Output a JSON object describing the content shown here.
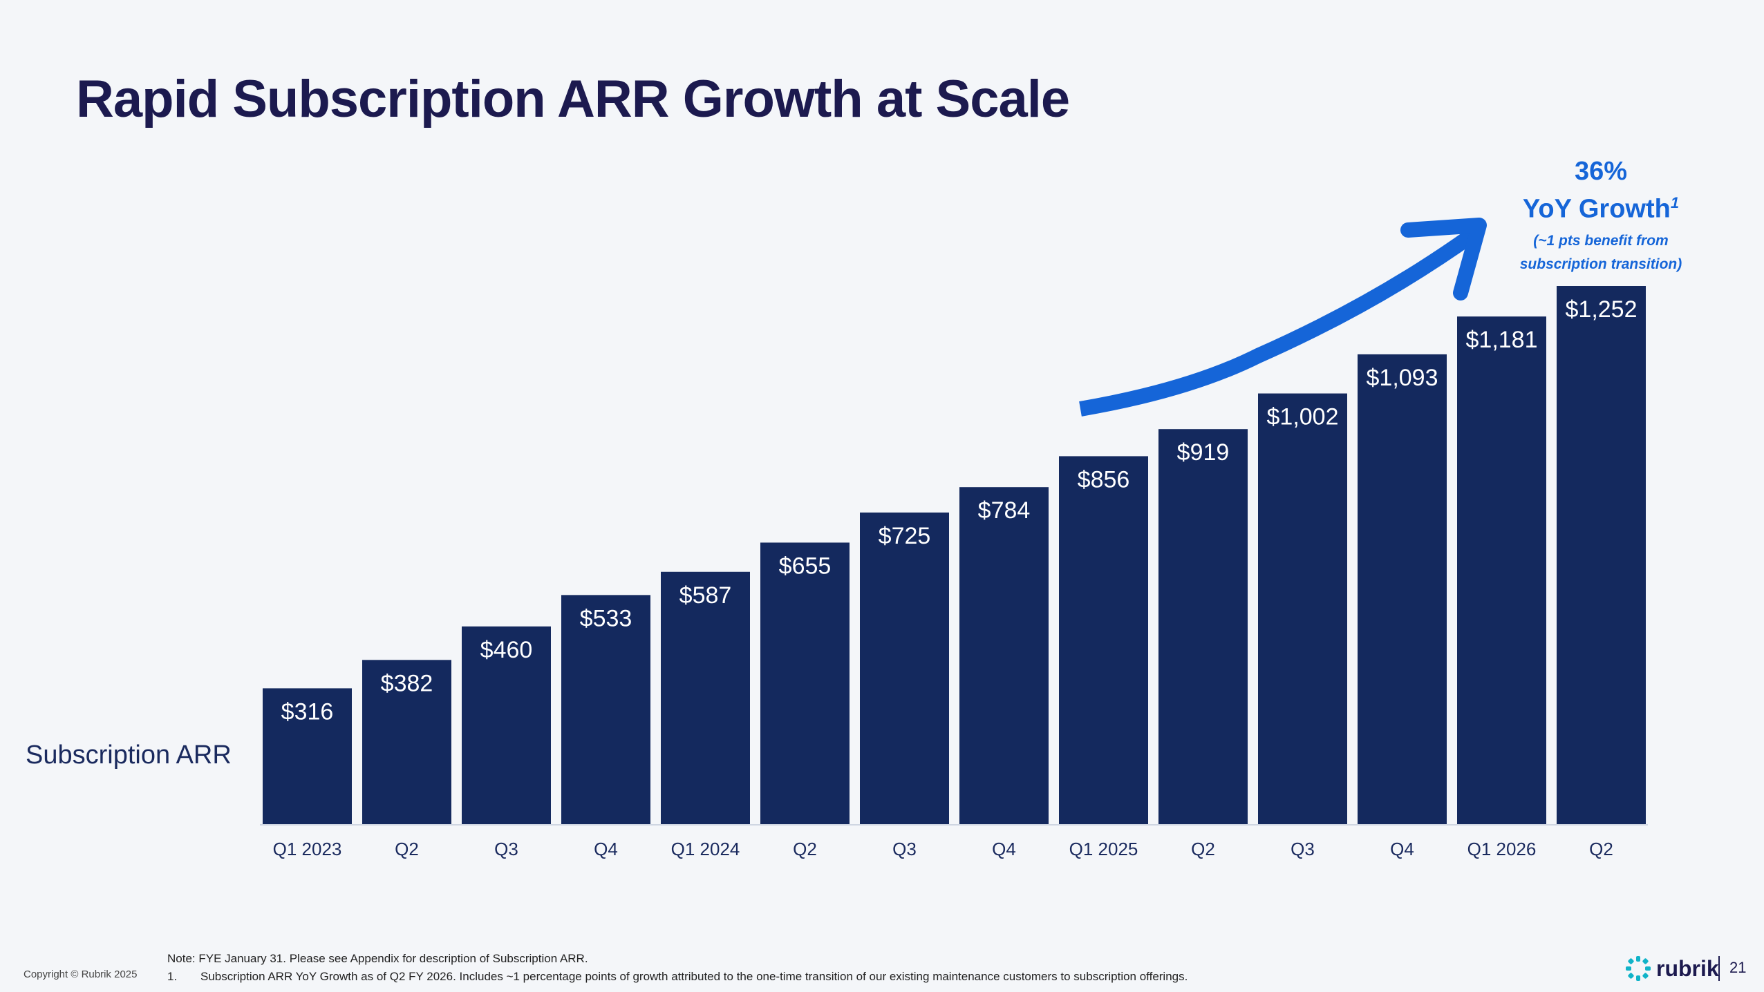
{
  "title": "Rapid Subscription ARR Growth at Scale",
  "series_label": "Subscription ARR",
  "callout": {
    "pct": "36%",
    "growth": "YoY Growth",
    "footnote_mark": "1",
    "note_line1": "(~1 pts benefit from",
    "note_line2": "subscription transition)"
  },
  "colors": {
    "bar": "#14295e",
    "arrow": "#1565d8",
    "title": "#1c1a4f"
  },
  "chart_data": {
    "type": "bar",
    "categories": [
      "Q1 2023",
      "Q2",
      "Q3",
      "Q4",
      "Q1 2024",
      "Q2",
      "Q3",
      "Q4",
      "Q1 2025",
      "Q2",
      "Q3",
      "Q4",
      "Q1 2026",
      "Q2"
    ],
    "values": [
      316,
      382,
      460,
      533,
      587,
      655,
      725,
      784,
      856,
      919,
      1002,
      1093,
      1181,
      1252
    ],
    "data_labels": [
      "$316",
      "$382",
      "$460",
      "$533",
      "$587",
      "$655",
      "$725",
      "$784",
      "$856",
      "$919",
      "$1,002",
      "$1,093",
      "$1,181",
      "$1,252"
    ],
    "title": "",
    "xlabel": "",
    "ylabel": "Subscription ARR",
    "ylim": [
      0,
      1252
    ],
    "grid": false,
    "legend": "none"
  },
  "footer": {
    "note": "Note: FYE January 31. Please see Appendix for description of Subscription ARR.",
    "footnote_num": "1.",
    "footnote_text": "Subscription ARR YoY Growth as of Q2 FY 2026. Includes ~1 percentage points of growth attributed to the one-time transition of our existing maintenance customers to subscription offerings.",
    "copyright": "Copyright © Rubrik 2025",
    "logo_text": "rubrik",
    "page_number": "21"
  }
}
